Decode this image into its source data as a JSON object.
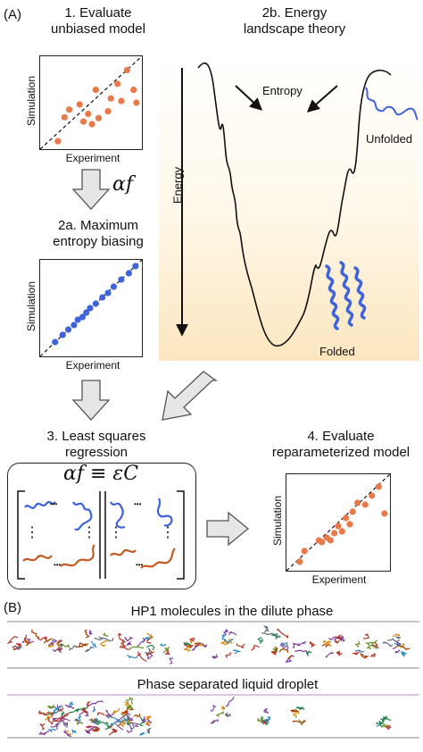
{
  "panel_a": {
    "label": "(A)",
    "step1": {
      "line1": "1. Evaluate",
      "line2": "unbiased model"
    },
    "step2a": {
      "line1": "2a. Maximum",
      "line2": "entropy biasing"
    },
    "step2b": {
      "line1": "2b. Energy",
      "line2": "landscape theory"
    },
    "step3": {
      "line1": "3. Least squares",
      "line2": "regression"
    },
    "step4": {
      "line1": "4. Evaluate",
      "line2": "reparameterized model"
    },
    "arrow_label_af": "αf",
    "equation": "αf ≡ εC",
    "energy_label": "Energy",
    "entropy_label": "Entropy",
    "unfolded_label": "Unfolded",
    "folded_label": "Folded",
    "dots": "•••",
    "vdots": "⋮",
    "ddots": "⋱"
  },
  "panel_b": {
    "label": "(B)",
    "title1": "HP1 molecules in the dilute phase",
    "title2": "Phase separated liquid droplet"
  },
  "scatter_axes": {
    "xlabel": "Experiment",
    "ylabel": "Simulation"
  },
  "colors": {
    "orange": "#e8794a",
    "blue": "#3f63d8",
    "landscape_top": "#ffffff",
    "landscape_bottom": "#fbe6bf"
  },
  "chart_data": [
    {
      "type": "scatter",
      "xlabel": "Experiment",
      "ylabel": "Simulation",
      "xlim": [
        0,
        1
      ],
      "ylim": [
        0,
        1
      ],
      "x": [
        0.15,
        0.22,
        0.27,
        0.38,
        0.42,
        0.47,
        0.51,
        0.55,
        0.58,
        0.68,
        0.71,
        0.78,
        0.82,
        0.88,
        0.95,
        0.98
      ],
      "y": [
        0.05,
        0.33,
        0.42,
        0.48,
        0.28,
        0.37,
        0.25,
        0.65,
        0.32,
        0.4,
        0.55,
        0.72,
        0.52,
        0.88,
        0.65,
        0.5
      ]
    },
    {
      "type": "scatter",
      "xlabel": "Experiment",
      "ylabel": "Simulation",
      "xlim": [
        0,
        1
      ],
      "ylim": [
        0,
        1
      ],
      "x": [
        0.12,
        0.2,
        0.26,
        0.32,
        0.36,
        0.41,
        0.45,
        0.49,
        0.55,
        0.62,
        0.68,
        0.74,
        0.82,
        0.9,
        0.97
      ],
      "y": [
        0.12,
        0.2,
        0.26,
        0.31,
        0.37,
        0.4,
        0.45,
        0.5,
        0.55,
        0.62,
        0.67,
        0.74,
        0.82,
        0.89,
        0.97
      ]
    },
    {
      "type": "scatter",
      "xlabel": "Experiment",
      "ylabel": "Simulation",
      "xlim": [
        0,
        1
      ],
      "ylim": [
        0,
        1
      ],
      "x": [
        0.1,
        0.15,
        0.3,
        0.33,
        0.38,
        0.42,
        0.46,
        0.5,
        0.54,
        0.58,
        0.62,
        0.65,
        0.7,
        0.78,
        0.85,
        0.92,
        0.98
      ],
      "y": [
        0.06,
        0.18,
        0.3,
        0.28,
        0.33,
        0.3,
        0.38,
        0.46,
        0.4,
        0.55,
        0.48,
        0.62,
        0.72,
        0.7,
        0.8,
        0.9,
        0.6
      ]
    }
  ]
}
